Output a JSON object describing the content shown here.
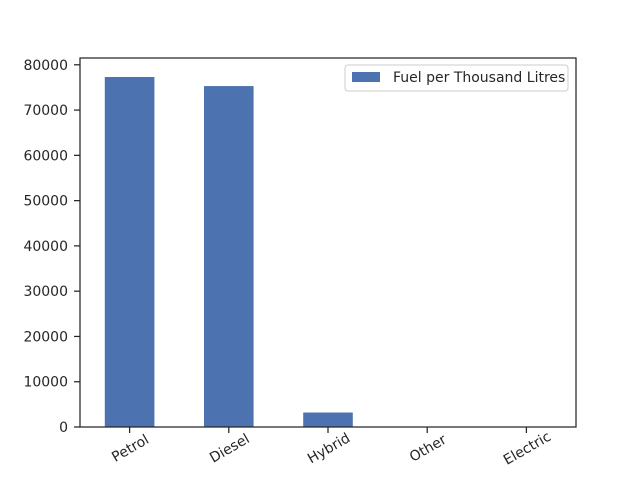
{
  "chart_data": {
    "type": "bar",
    "title": "",
    "xlabel": "",
    "ylabel": "",
    "categories": [
      "Petrol",
      "Diesel",
      "Hybrid",
      "Other",
      "Electric"
    ],
    "series": [
      {
        "name": "Fuel per Thousand Litres",
        "values": [
          77300,
          75300,
          3200,
          0,
          0
        ],
        "color": "#4c72b0"
      }
    ],
    "ylim": [
      0,
      81500
    ],
    "yticks": [
      0,
      10000,
      20000,
      30000,
      40000,
      50000,
      60000,
      70000,
      80000
    ],
    "ytick_labels": [
      "0",
      "10000",
      "20000",
      "30000",
      "40000",
      "50000",
      "60000",
      "70000",
      "80000"
    ],
    "xtick_rotation_deg": 30,
    "grid": false,
    "legend_position": "top-right"
  }
}
